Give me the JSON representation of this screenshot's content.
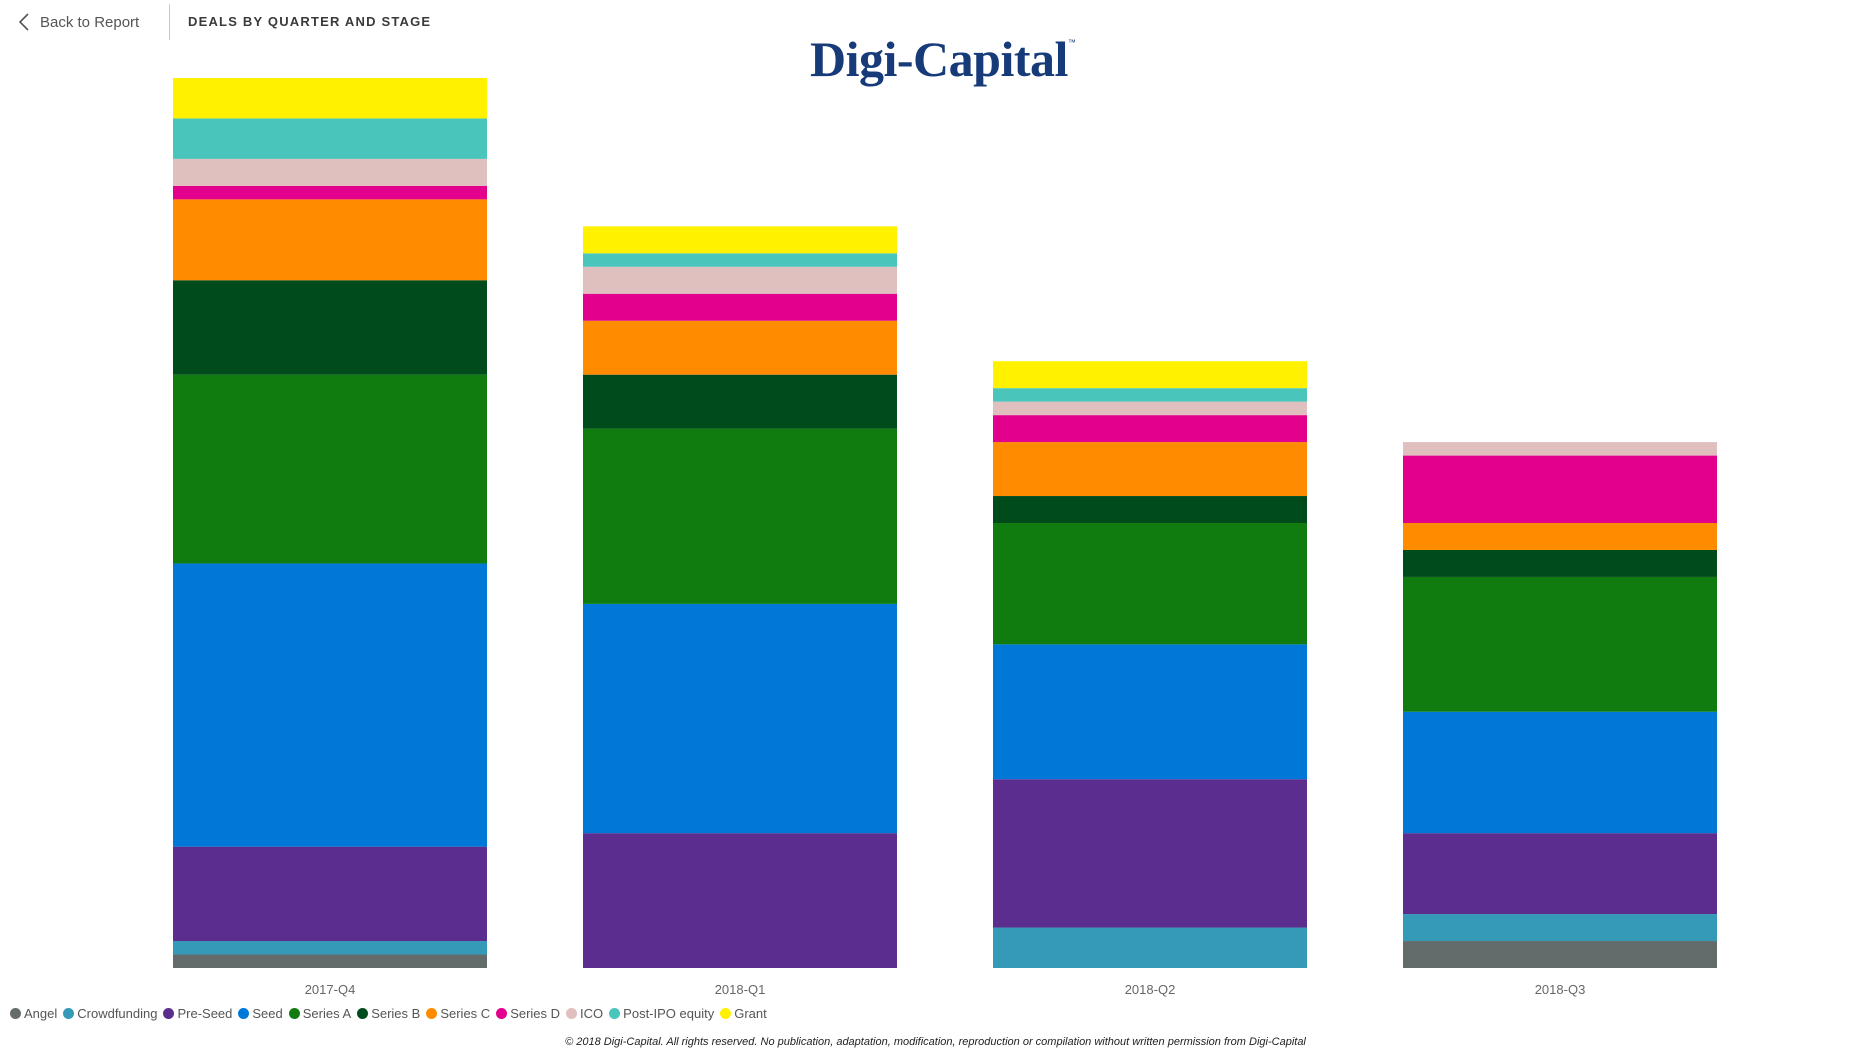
{
  "header": {
    "back_label": "Back to Report",
    "page_title": "DEALS BY QUARTER AND STAGE"
  },
  "logo": {
    "text": "Digi-Capital",
    "tm": "™"
  },
  "chart_data": {
    "type": "bar",
    "stacked": true,
    "title": "",
    "xlabel": "",
    "ylabel": "",
    "categories": [
      "2017-Q4",
      "2018-Q1",
      "2018-Q2",
      "2018-Q3"
    ],
    "ylim": [
      0,
      66
    ],
    "legend_position": "bottom-left",
    "grid": false,
    "series": [
      {
        "name": "Angel",
        "color": "#636B6B",
        "values": [
          1,
          0,
          0,
          2
        ]
      },
      {
        "name": "Crowdfunding",
        "color": "#3599B8",
        "values": [
          1,
          0,
          3,
          2
        ]
      },
      {
        "name": "Pre-Seed",
        "color": "#5B2D8E",
        "values": [
          7,
          10,
          11,
          6
        ]
      },
      {
        "name": "Seed",
        "color": "#0078D7",
        "values": [
          21,
          17,
          10,
          9
        ]
      },
      {
        "name": "Series A",
        "color": "#107C10",
        "values": [
          14,
          13,
          9,
          10
        ]
      },
      {
        "name": "Series B",
        "color": "#004B1C",
        "values": [
          7,
          4,
          2,
          2
        ]
      },
      {
        "name": "Series C",
        "color": "#FF8C00",
        "values": [
          6,
          4,
          4,
          2
        ]
      },
      {
        "name": "Series D",
        "color": "#E3008C",
        "values": [
          1,
          2,
          2,
          5
        ]
      },
      {
        "name": "ICO",
        "color": "#E0BFBF",
        "values": [
          2,
          2,
          1,
          1
        ]
      },
      {
        "name": "Post-IPO equity",
        "color": "#4AC5BB",
        "values": [
          3,
          1,
          1,
          0
        ]
      },
      {
        "name": "Grant",
        "color": "#FFF100",
        "values": [
          3,
          2,
          2,
          0
        ]
      }
    ]
  },
  "footer": {
    "copyright": "© 2018 Digi-Capital. All rights reserved. No publication, adaptation, modification, reproduction or compilation without written permission from Digi-Capital"
  }
}
